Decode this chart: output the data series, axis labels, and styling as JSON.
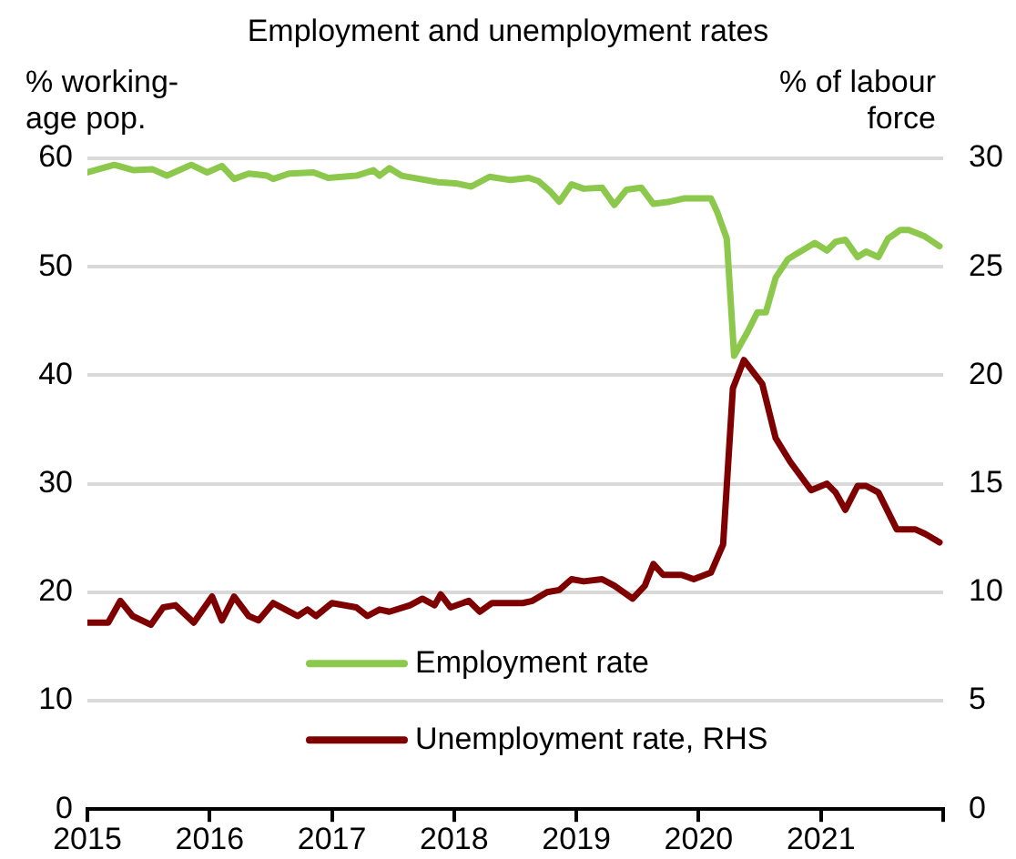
{
  "chart_data": {
    "type": "line",
    "title": "Employment and unemployment rates",
    "ylabel": "% working-\nage pop.",
    "y2label": "% of labour\nforce",
    "xlim": [
      2015,
      2022
    ],
    "xticks": [
      2015,
      2016,
      2017,
      2018,
      2019,
      2020,
      2021,
      {
        "value": 2022,
        "label": null
      }
    ],
    "ylim": [
      0,
      60
    ],
    "yticks": [
      0,
      10,
      20,
      30,
      40,
      50,
      60
    ],
    "y2lim": [
      0,
      30
    ],
    "y2ticks": [
      0,
      5,
      10,
      15,
      20,
      25,
      30
    ],
    "grid": "y",
    "legend": "bottom",
    "marker": "none",
    "line_style": "solid",
    "series": [
      {
        "name": "Employment rate",
        "color": "#8cc84b",
        "x": [
          2015.0,
          2015.22,
          2015.38,
          2015.53,
          2015.65,
          2015.85,
          2015.98,
          2016.1,
          2016.2,
          2016.32,
          2016.47,
          2016.52,
          2016.65,
          2016.85,
          2016.97,
          2017.2,
          2017.34,
          2017.39,
          2017.47,
          2017.57,
          2017.87,
          2018.01,
          2018.14,
          2018.29,
          2018.46,
          2018.61,
          2018.69,
          2018.79,
          2018.86,
          2018.96,
          2019.06,
          2019.21,
          2019.31,
          2019.41,
          2019.53,
          2019.63,
          2019.76,
          2019.88,
          2020.1,
          2020.15,
          2020.23,
          2020.29,
          2020.4,
          2020.48,
          2020.55,
          2020.63,
          2020.73,
          2020.8,
          2020.95,
          2021.05,
          2021.12,
          2021.2,
          2021.3,
          2021.37,
          2021.47,
          2021.55,
          2021.65,
          2021.72,
          2021.85,
          2021.97
        ],
        "values": [
          58.7,
          59.4,
          58.9,
          59.0,
          58.4,
          59.4,
          58.7,
          59.3,
          58.1,
          58.6,
          58.4,
          58.1,
          58.6,
          58.7,
          58.2,
          58.4,
          58.9,
          58.4,
          59.1,
          58.4,
          57.8,
          57.7,
          57.4,
          58.3,
          58.0,
          58.2,
          57.9,
          56.9,
          56.0,
          57.6,
          57.2,
          57.3,
          55.7,
          57.1,
          57.3,
          55.8,
          56.0,
          56.3,
          56.3,
          55.1,
          52.6,
          41.8,
          44.0,
          45.8,
          45.8,
          49.0,
          50.7,
          51.2,
          52.2,
          51.5,
          52.3,
          52.5,
          50.9,
          51.4,
          50.9,
          52.6,
          53.4,
          53.4,
          52.8,
          51.9
        ]
      },
      {
        "name": "Unemployment rate, RHS",
        "color": "#7f0000",
        "axis": "y2",
        "x": [
          2015.0,
          2015.17,
          2015.27,
          2015.37,
          2015.52,
          2015.62,
          2015.72,
          2015.87,
          2016.02,
          2016.1,
          2016.2,
          2016.32,
          2016.4,
          2016.52,
          2016.62,
          2016.72,
          2016.8,
          2016.87,
          2017.0,
          2017.2,
          2017.29,
          2017.39,
          2017.47,
          2017.64,
          2017.74,
          2017.84,
          2017.89,
          2017.97,
          2018.12,
          2018.21,
          2018.31,
          2018.56,
          2018.64,
          2018.76,
          2018.86,
          2018.96,
          2019.06,
          2019.21,
          2019.31,
          2019.46,
          2019.56,
          2019.63,
          2019.71,
          2019.86,
          2019.96,
          2020.1,
          2020.2,
          2020.28,
          2020.37,
          2020.52,
          2020.63,
          2020.75,
          2020.92,
          2021.05,
          2021.12,
          2021.2,
          2021.3,
          2021.37,
          2021.47,
          2021.62,
          2021.77,
          2021.85,
          2021.97
        ],
        "values": [
          8.6,
          8.6,
          9.6,
          8.9,
          8.5,
          9.3,
          9.4,
          8.6,
          9.8,
          8.7,
          9.8,
          8.9,
          8.7,
          9.5,
          9.2,
          8.9,
          9.2,
          8.9,
          9.5,
          9.3,
          8.9,
          9.2,
          9.1,
          9.4,
          9.7,
          9.4,
          9.9,
          9.3,
          9.6,
          9.1,
          9.5,
          9.5,
          9.6,
          10.0,
          10.1,
          10.6,
          10.5,
          10.6,
          10.3,
          9.7,
          10.3,
          11.3,
          10.8,
          10.8,
          10.6,
          10.9,
          12.2,
          19.4,
          20.7,
          19.6,
          17.1,
          16.0,
          14.7,
          15.0,
          14.6,
          13.8,
          14.9,
          14.9,
          14.6,
          12.9,
          12.9,
          12.7,
          12.3
        ]
      }
    ]
  }
}
